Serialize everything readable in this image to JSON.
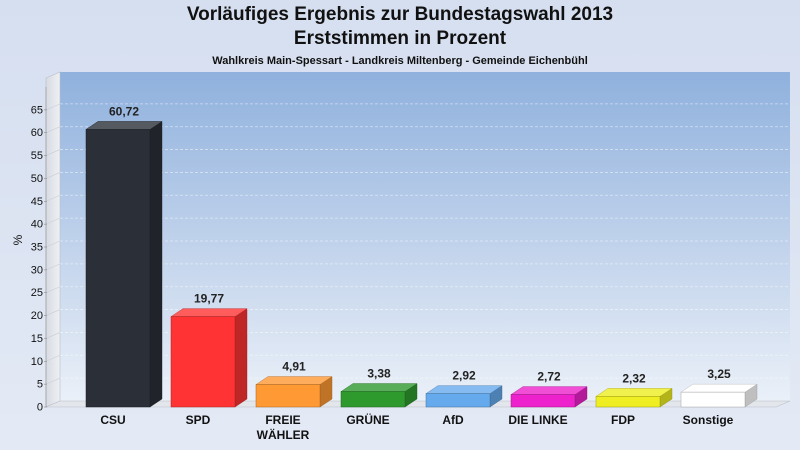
{
  "page": {
    "title_line1": "Vorläufiges Ergebnis zur Bundestagswahl 2013",
    "title_line2": "Erststimmen in Prozent",
    "subtitle": "Wahlkreis Main-Spessart - Landkreis Miltenberg - Gemeinde Eichenbühl"
  },
  "chart_data": {
    "type": "bar",
    "title": "Vorläufiges Ergebnis zur Bundestagswahl 2013 Erststimmen in Prozent",
    "subtitle": "Wahlkreis Main-Spessart - Landkreis Miltenberg - Gemeinde Eichenbühl",
    "ylabel": "%",
    "ylim": [
      0,
      70
    ],
    "yticks": [
      0,
      5,
      10,
      15,
      20,
      25,
      30,
      35,
      40,
      45,
      50,
      55,
      60,
      65
    ],
    "grid": true,
    "style": "3d",
    "categories": [
      "CSU",
      "SPD",
      "FREIE WÄHLER",
      "GRÜNE",
      "AfD",
      "DIE LINKE",
      "FDP",
      "Sonstige"
    ],
    "category_lines": [
      [
        "CSU"
      ],
      [
        "SPD"
      ],
      [
        "FREIE",
        "WÄHLER"
      ],
      [
        "GRÜNE"
      ],
      [
        "AfD"
      ],
      [
        "DIE LINKE"
      ],
      [
        "FDP"
      ],
      [
        "Sonstige"
      ]
    ],
    "values": [
      60.72,
      19.77,
      4.91,
      3.38,
      2.92,
      2.72,
      2.32,
      3.25
    ],
    "value_labels": [
      "60,72",
      "19,77",
      "4,91",
      "3,38",
      "2,92",
      "2,72",
      "2,32",
      "3,25"
    ],
    "colors": [
      "#2b2f38",
      "#ff3333",
      "#ff9933",
      "#2e9a2e",
      "#66aaee",
      "#ee22cc",
      "#eeee22",
      "#ffffff"
    ]
  }
}
